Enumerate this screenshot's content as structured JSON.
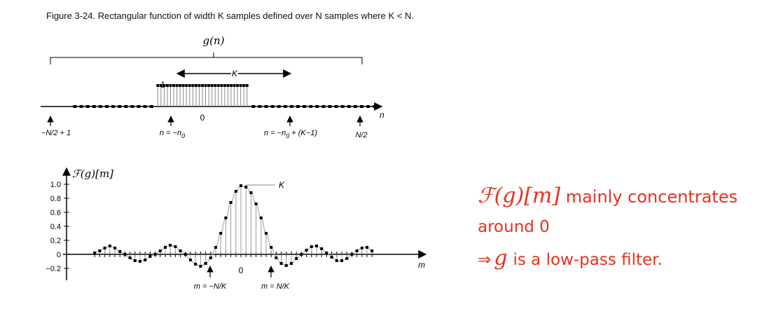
{
  "caption": "Figure 3-24. Rectangular function of width K samples defined over N samples where K < N.",
  "top_plot": {
    "title": "g(n)",
    "width_label": "K",
    "amplitude_label": "1",
    "axis_label": "n",
    "zero_label": "0",
    "marker_left": "−N/2 + 1",
    "marker_start": "n = −n",
    "marker_start_sub": "0",
    "marker_end_pre": "n = −n",
    "marker_end_sub": "0",
    "marker_end_post": " + (K−1)",
    "marker_right": "N/2"
  },
  "bottom_plot": {
    "title": "ℱ(g)[m]",
    "peak_label": "K",
    "axis_label": "m",
    "zero_label": "0",
    "y_ticks": [
      "1.0",
      "0.8",
      "0.6",
      "0.4",
      "0.2",
      "0",
      "−0.2"
    ],
    "marker_neg": "m = −N/K",
    "marker_pos": "m = N/K"
  },
  "chart_data": {
    "type": "scatter",
    "title": "ℱ(g)[m]",
    "xlabel": "m",
    "ylabel": "",
    "ylim": [
      -0.2,
      1.0
    ],
    "y_ticks": [
      1.0,
      0.8,
      0.6,
      0.4,
      0.2,
      0,
      -0.2
    ],
    "x_annotations": [
      "m = −N/K",
      "0",
      "m = N/K"
    ],
    "points_m": [
      -20,
      -19,
      -18,
      -17,
      -16,
      -15,
      -14,
      -13,
      -12,
      -11,
      -10,
      -9,
      -8,
      -7,
      -6,
      -5,
      -4,
      -3,
      -2,
      -1,
      0,
      1,
      2,
      3,
      4,
      5,
      6,
      7,
      8,
      9,
      10,
      11,
      12,
      13,
      14,
      15,
      16,
      17,
      18,
      19,
      20,
      21,
      22,
      23,
      24,
      25,
      26,
      27,
      28,
      29,
      30,
      31,
      32,
      33,
      34,
      35
    ],
    "points_value": [
      0.02,
      0.05,
      0.09,
      0.12,
      0.09,
      0.04,
      0.0,
      -0.05,
      -0.09,
      -0.1,
      -0.08,
      -0.03,
      0.0,
      0.05,
      0.1,
      0.13,
      0.11,
      0.05,
      0.0,
      -0.08,
      -0.14,
      -0.17,
      -0.13,
      -0.05,
      0.1,
      0.3,
      0.52,
      0.74,
      0.9,
      0.98,
      0.96,
      0.88,
      0.72,
      0.52,
      0.3,
      0.1,
      -0.05,
      -0.13,
      -0.16,
      -0.13,
      -0.06,
      0.0,
      0.06,
      0.11,
      0.12,
      0.08,
      0.02,
      -0.04,
      -0.09,
      -0.09,
      -0.06,
      0.0,
      0.05,
      0.09,
      0.1,
      0.05
    ],
    "rect_n_min": -40,
    "rect_n_max": 54,
    "rect_start": -14,
    "rect_end": 14,
    "rect_amplitude": 1
  },
  "note": {
    "line1_math": "ℱ(g)[m]",
    "line1_text": " mainly concentrates",
    "line2_text": "around 0",
    "line3_arrow": "⇒",
    "line3_math": "g",
    "line3_text": "is a low-pass filter."
  }
}
